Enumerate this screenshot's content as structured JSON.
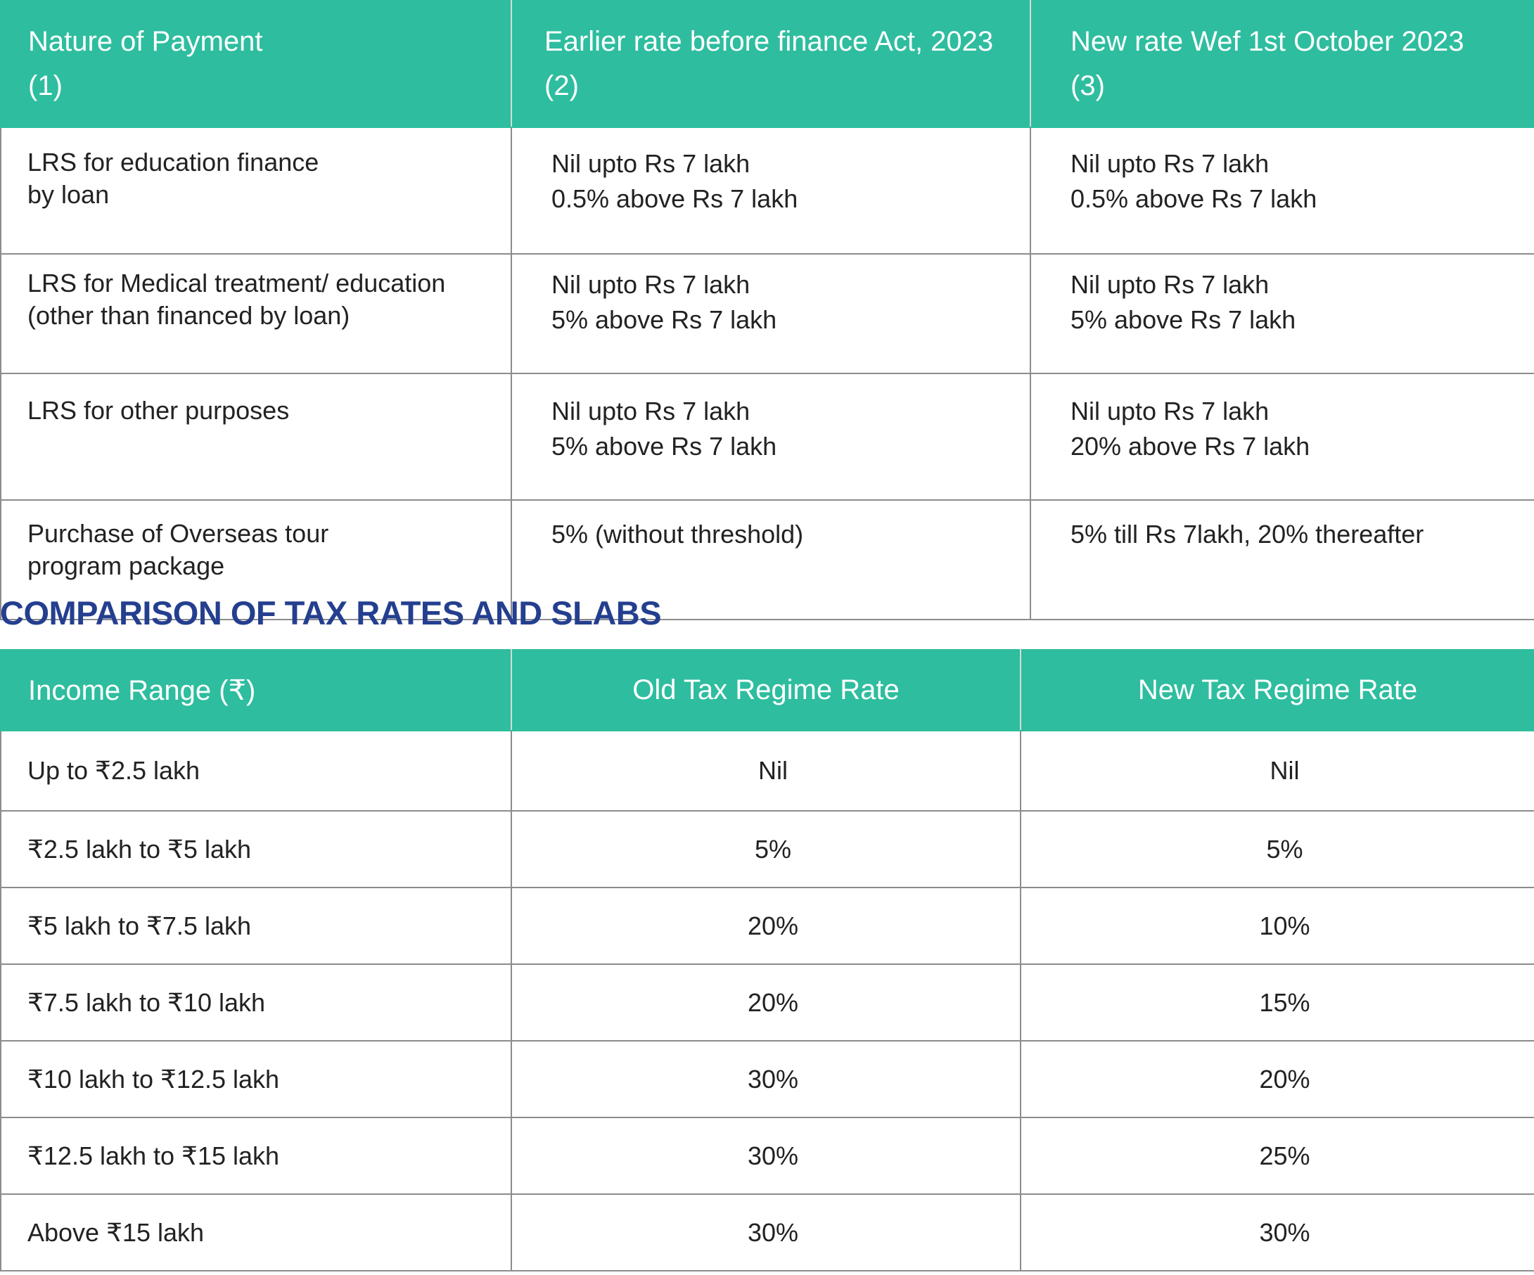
{
  "lrs_table": {
    "headers": [
      {
        "title": "Nature of Payment",
        "num": "(1)"
      },
      {
        "title": "Earlier rate before finance Act, 2023",
        "num": "(2)"
      },
      {
        "title": "New rate Wef 1st October 2023",
        "num": "(3)"
      }
    ],
    "rows": [
      {
        "nature": [
          "LRS for education finance",
          "by loan"
        ],
        "earlier": [
          "Nil upto Rs 7 lakh",
          "0.5% above Rs 7 lakh"
        ],
        "new": [
          "Nil upto Rs 7 lakh",
          "0.5% above Rs 7 lakh"
        ]
      },
      {
        "nature": [
          "LRS for Medical treatment/ education",
          "(other than financed by loan)"
        ],
        "earlier": [
          "Nil upto Rs 7 lakh",
          "5% above Rs 7 lakh"
        ],
        "new": [
          "Nil upto Rs 7 lakh",
          "5% above Rs 7 lakh"
        ]
      },
      {
        "nature": [
          "LRS for other purposes"
        ],
        "earlier": [
          "Nil upto Rs 7 lakh",
          "5% above Rs 7 lakh"
        ],
        "new": [
          "Nil upto Rs 7 lakh",
          "20% above Rs 7 lakh"
        ]
      },
      {
        "nature": [
          "Purchase of Overseas tour",
          "program package"
        ],
        "earlier": [
          "5% (without threshold)"
        ],
        "new": [
          "5% till Rs 7lakh, 20% thereafter"
        ]
      }
    ]
  },
  "section_heading": "COMPARISON OF TAX RATES AND SLABS",
  "tax_table": {
    "headers": [
      "Income Range (₹)",
      "Old Tax Regime Rate",
      "New Tax Regime Rate"
    ],
    "rows": [
      {
        "range": "Up to ₹2.5 lakh",
        "old": "Nil",
        "new": "Nil"
      },
      {
        "range": "₹2.5 lakh to ₹5 lakh",
        "old": "5%",
        "new": "5%"
      },
      {
        "range": "₹5 lakh to ₹7.5 lakh",
        "old": "20%",
        "new": "10%"
      },
      {
        "range": "₹7.5 lakh to ₹10 lakh",
        "old": "20%",
        "new": "15%"
      },
      {
        "range": "₹10 lakh to ₹12.5 lakh",
        "old": "30%",
        "new": "20%"
      },
      {
        "range": "₹12.5 lakh to ₹15 lakh",
        "old": "30%",
        "new": "25%"
      },
      {
        "range": "Above ₹15 lakh",
        "old": "30%",
        "new": "30%"
      }
    ]
  },
  "colors": {
    "header_bg": "#2ebd9f",
    "header_text": "#ffffff",
    "heading_text": "#243f8f",
    "body_text": "#222222",
    "border": "#8c8c8c"
  }
}
